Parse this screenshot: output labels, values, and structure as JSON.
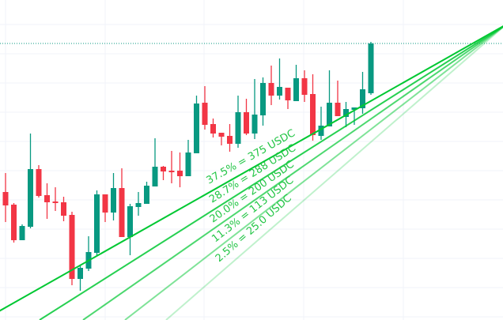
{
  "chart_data": {
    "type": "candlestick",
    "title": "",
    "xlabel": "",
    "ylabel": "",
    "grid": true,
    "colors": {
      "up": "#089981",
      "down": "#f23645",
      "fan": "#00c832",
      "label": "#22c545",
      "grid": "#f0f3fa",
      "last_price_line": "#089981"
    },
    "candles": [
      {
        "o": 162,
        "h": 186,
        "l": 124,
        "c": 145
      },
      {
        "o": 146,
        "h": 148,
        "l": 98,
        "c": 101
      },
      {
        "o": 101,
        "h": 121,
        "l": 101,
        "c": 119
      },
      {
        "o": 118,
        "h": 236,
        "l": 116,
        "c": 191
      },
      {
        "o": 191,
        "h": 196,
        "l": 155,
        "c": 157
      },
      {
        "o": 158,
        "h": 173,
        "l": 128,
        "c": 149
      },
      {
        "o": 150,
        "h": 168,
        "l": 138,
        "c": 148
      },
      {
        "o": 149,
        "h": 156,
        "l": 125,
        "c": 132
      },
      {
        "o": 133,
        "h": 137,
        "l": 44,
        "c": 52
      },
      {
        "o": 52,
        "h": 70,
        "l": 37,
        "c": 66
      },
      {
        "o": 65,
        "h": 106,
        "l": 62,
        "c": 86
      },
      {
        "o": 85,
        "h": 164,
        "l": 81,
        "c": 159
      },
      {
        "o": 159,
        "h": 159,
        "l": 124,
        "c": 136
      },
      {
        "o": 136,
        "h": 186,
        "l": 126,
        "c": 167
      },
      {
        "o": 167,
        "h": 192,
        "l": 105,
        "c": 105
      },
      {
        "o": 105,
        "h": 147,
        "l": 82,
        "c": 144
      },
      {
        "o": 143,
        "h": 162,
        "l": 132,
        "c": 148
      },
      {
        "o": 147,
        "h": 175,
        "l": 147,
        "c": 170
      },
      {
        "o": 169,
        "h": 230,
        "l": 169,
        "c": 194
      },
      {
        "o": 194,
        "h": 195,
        "l": 177,
        "c": 188
      },
      {
        "o": 189,
        "h": 214,
        "l": 173,
        "c": 187
      },
      {
        "o": 189,
        "h": 212,
        "l": 168,
        "c": 182
      },
      {
        "o": 182,
        "h": 228,
        "l": 182,
        "c": 212
      },
      {
        "o": 211,
        "h": 284,
        "l": 211,
        "c": 274
      },
      {
        "o": 275,
        "h": 296,
        "l": 241,
        "c": 247
      },
      {
        "o": 248,
        "h": 255,
        "l": 231,
        "c": 236
      },
      {
        "o": 237,
        "h": 237,
        "l": 221,
        "c": 232
      },
      {
        "o": 233,
        "h": 248,
        "l": 213,
        "c": 223
      },
      {
        "o": 223,
        "h": 284,
        "l": 218,
        "c": 263
      },
      {
        "o": 263,
        "h": 280,
        "l": 234,
        "c": 236
      },
      {
        "o": 236,
        "h": 305,
        "l": 229,
        "c": 260
      },
      {
        "o": 259,
        "h": 307,
        "l": 246,
        "c": 300
      },
      {
        "o": 300,
        "h": 322,
        "l": 272,
        "c": 284
      },
      {
        "o": 284,
        "h": 331,
        "l": 279,
        "c": 295
      },
      {
        "o": 294,
        "h": 294,
        "l": 267,
        "c": 278
      },
      {
        "o": 277,
        "h": 323,
        "l": 277,
        "c": 306
      },
      {
        "o": 306,
        "h": 316,
        "l": 276,
        "c": 285
      },
      {
        "o": 286,
        "h": 311,
        "l": 227,
        "c": 234
      },
      {
        "o": 233,
        "h": 270,
        "l": 228,
        "c": 246
      },
      {
        "o": 245,
        "h": 316,
        "l": 245,
        "c": 275
      },
      {
        "o": 275,
        "h": 303,
        "l": 258,
        "c": 258
      },
      {
        "o": 257,
        "h": 276,
        "l": 244,
        "c": 267
      },
      {
        "o": 266,
        "h": 269,
        "l": 247,
        "c": 269
      },
      {
        "o": 268,
        "h": 314,
        "l": 261,
        "c": 292
      },
      {
        "o": 287,
        "h": 352,
        "l": 285,
        "c": 350
      }
    ],
    "last_price_level": 350,
    "fan_levels": [
      {
        "label": "37.5% = 375 USDC",
        "opacity": 1.0
      },
      {
        "label": "28.7% = 288 USDC",
        "opacity": 0.85
      },
      {
        "label": "20.0% = 200 USDC",
        "opacity": 0.7
      },
      {
        "label": "11.3% = 113 USDC",
        "opacity": 0.5
      },
      {
        "label": "2.5% = 25.0 USDC",
        "opacity": 0.25
      }
    ]
  }
}
